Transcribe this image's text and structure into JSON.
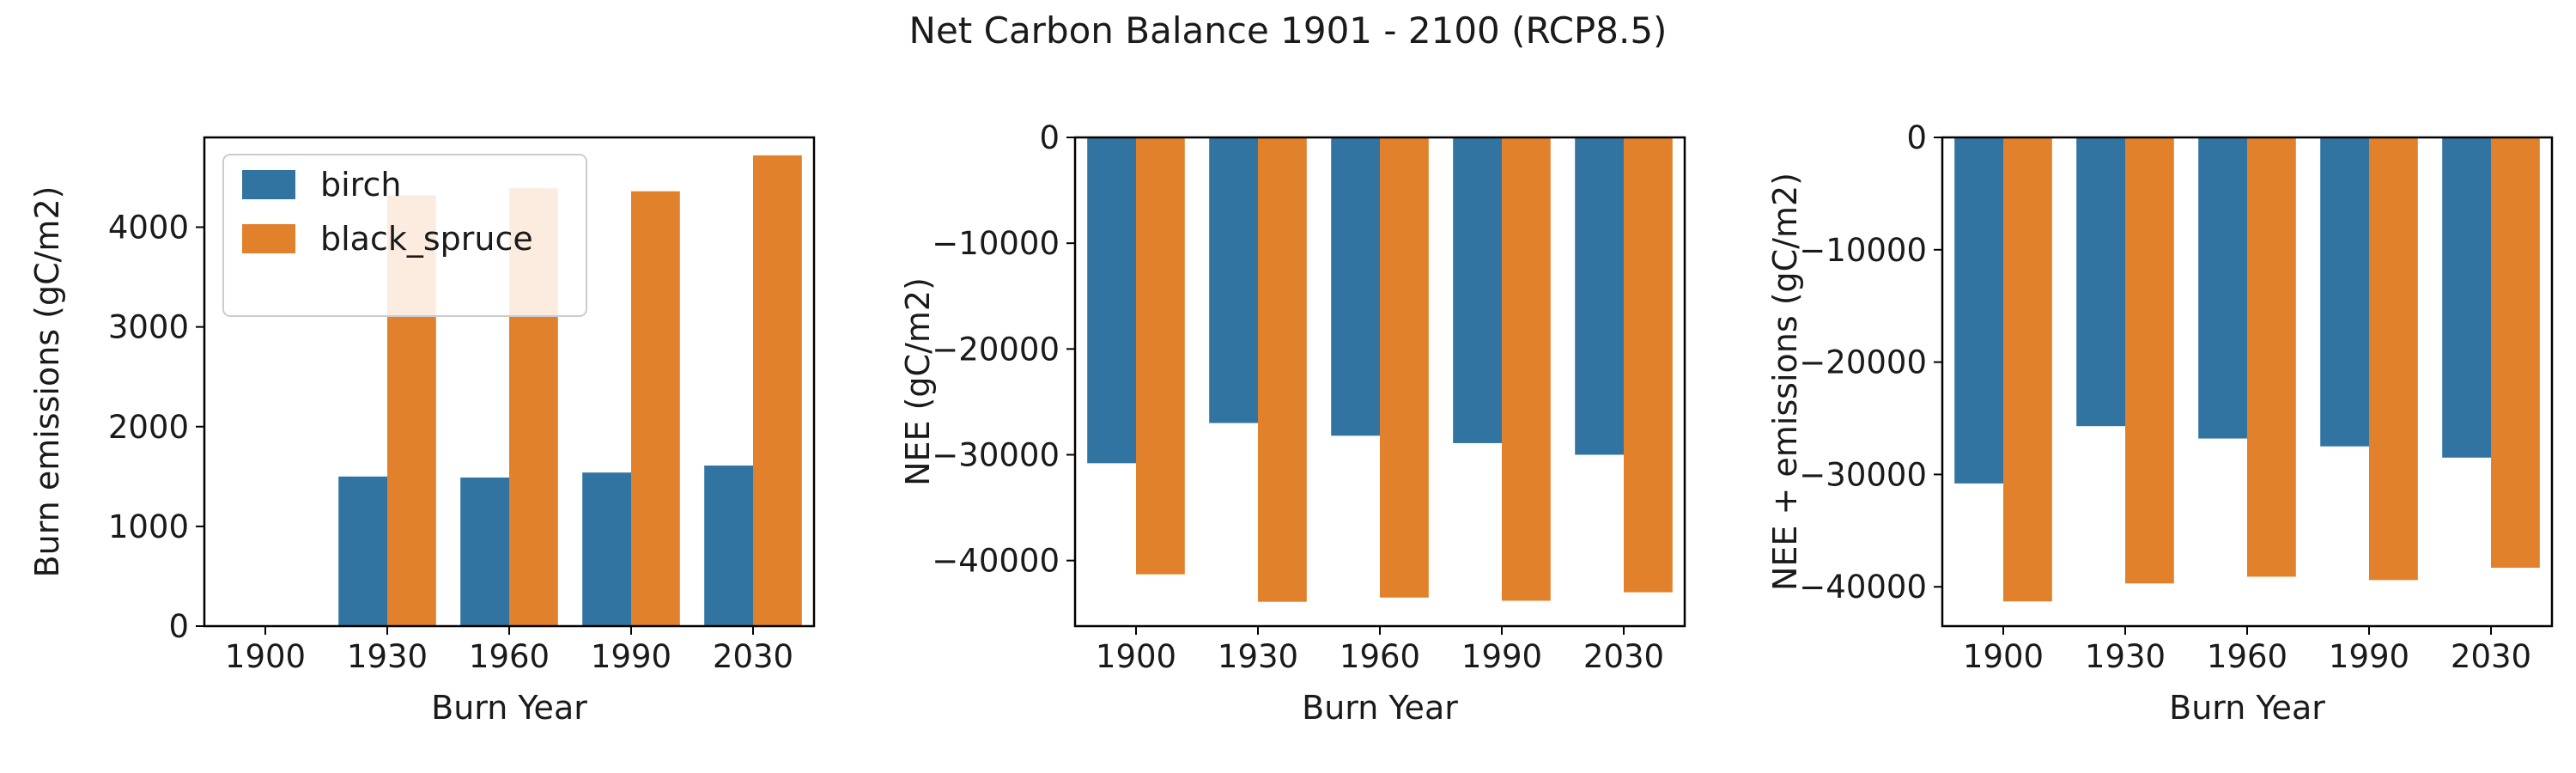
{
  "figure": {
    "title": "Net Carbon Balance 1901 - 2100 (RCP8.5)"
  },
  "colors": {
    "birch": "#3274a1",
    "black_spruce": "#e1812c",
    "axis": "#000000",
    "text": "#1a1a1a"
  },
  "legend": {
    "placement": "upper-left of first panel",
    "items": [
      "birch",
      "black_spruce"
    ]
  },
  "chart_data": [
    {
      "type": "bar",
      "xlabel": "Burn Year",
      "ylabel": "Burn emissions (gC/m2)",
      "categories": [
        "1900",
        "1930",
        "1960",
        "1990",
        "2030"
      ],
      "ylim": [
        0,
        4900
      ],
      "yticks": [
        0,
        1000,
        2000,
        3000,
        4000
      ],
      "series": [
        {
          "name": "birch",
          "values": [
            0,
            1500,
            1490,
            1540,
            1610
          ]
        },
        {
          "name": "black_spruce",
          "values": [
            0,
            4320,
            4390,
            4360,
            4720
          ]
        }
      ],
      "grid": false
    },
    {
      "type": "bar",
      "xlabel": "Burn Year",
      "ylabel": "NEE (gC/m2)",
      "categories": [
        "1900",
        "1930",
        "1960",
        "1990",
        "2030"
      ],
      "ylim": [
        -46200,
        0
      ],
      "yticks": [
        0,
        -10000,
        -20000,
        -30000,
        -40000
      ],
      "series": [
        {
          "name": "birch",
          "values": [
            -30800,
            -27000,
            -28200,
            -28900,
            -30000
          ]
        },
        {
          "name": "black_spruce",
          "values": [
            -41300,
            -43900,
            -43500,
            -43800,
            -43000
          ]
        }
      ],
      "grid": false
    },
    {
      "type": "bar",
      "xlabel": "Burn Year",
      "ylabel": "NEE + emissions (gC/m2)",
      "categories": [
        "1900",
        "1930",
        "1960",
        "1990",
        "2030"
      ],
      "ylim": [
        -43500,
        0
      ],
      "yticks": [
        0,
        -10000,
        -20000,
        -30000,
        -40000
      ],
      "series": [
        {
          "name": "birch",
          "values": [
            -30800,
            -25700,
            -26800,
            -27500,
            -28500
          ]
        },
        {
          "name": "black_spruce",
          "values": [
            -41300,
            -39700,
            -39100,
            -39400,
            -38300
          ]
        }
      ],
      "grid": false
    }
  ]
}
